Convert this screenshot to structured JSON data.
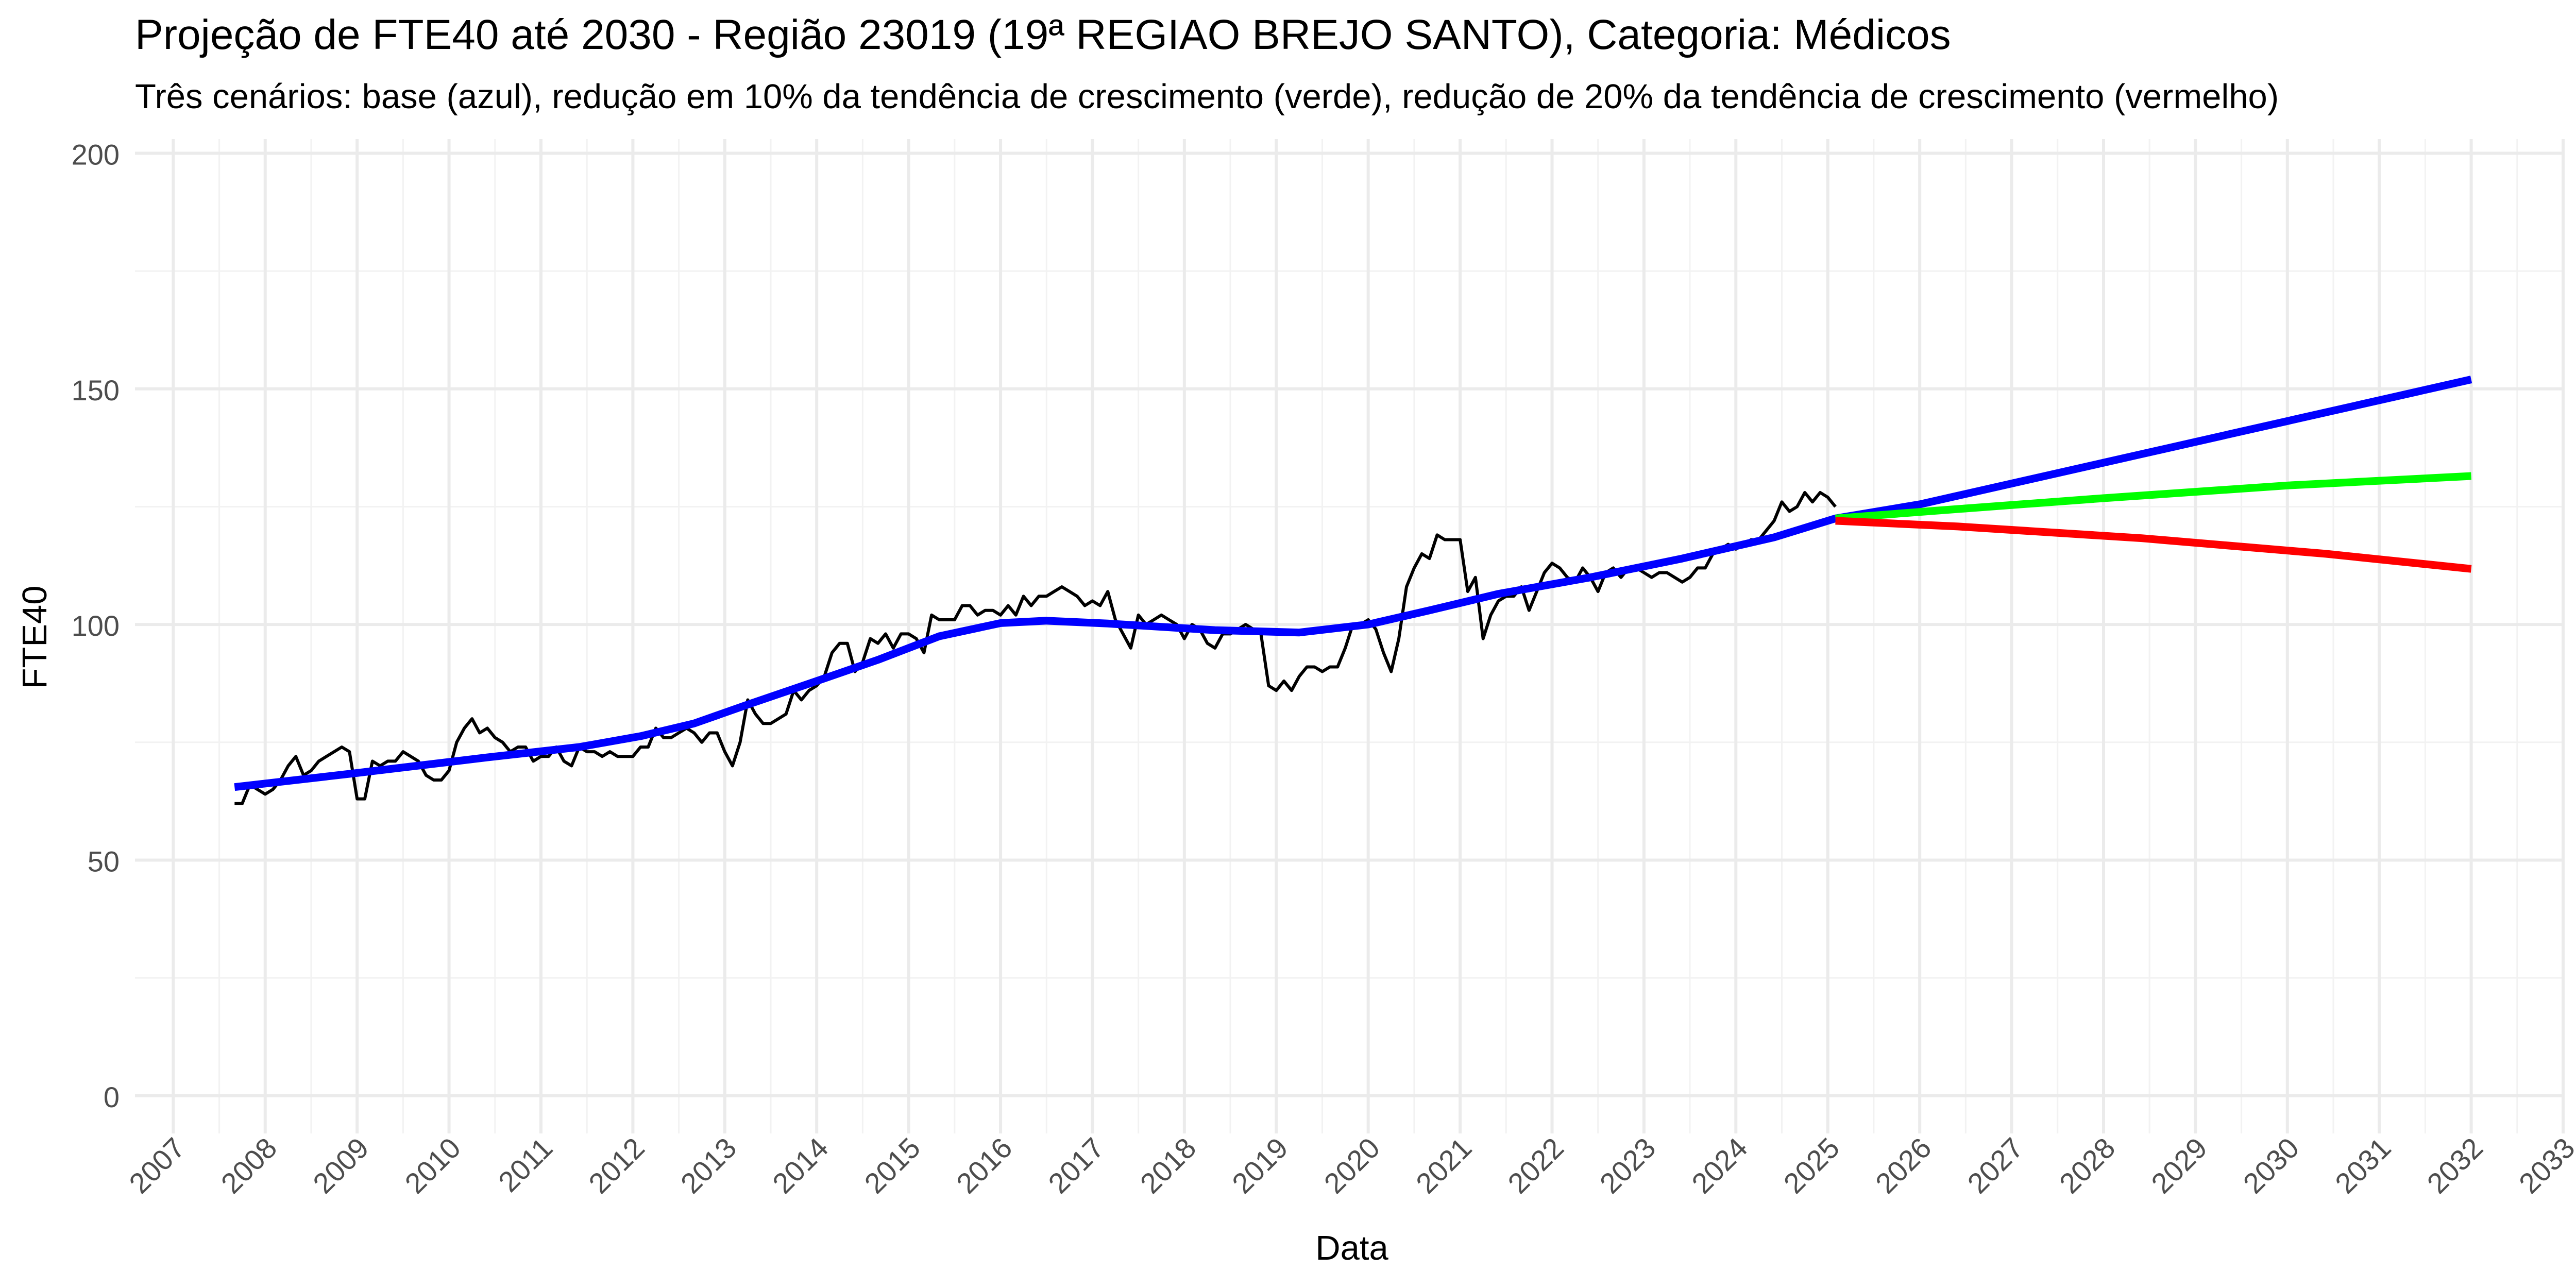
{
  "chart_data": {
    "type": "line",
    "title": "Projeção de FTE40 até 2030 - Região 23019 (19ª REGIAO BREJO SANTO), Categoria: Médicos",
    "subtitle": "Três cenários: base (azul), redução em 10% da tendência de crescimento (verde), redução de 20% da tendência de crescimento (vermelho)",
    "xlabel": "Data",
    "ylabel": "FTE40",
    "x_axis_type": "date",
    "xlim": [
      "2006-08-01",
      "2033-01-01"
    ],
    "ylim": [
      -8,
      203
    ],
    "x_ticks": [
      "2007",
      "2008",
      "2009",
      "2010",
      "2011",
      "2012",
      "2013",
      "2014",
      "2015",
      "2016",
      "2017",
      "2018",
      "2019",
      "2020",
      "2021",
      "2022",
      "2023",
      "2024",
      "2025",
      "2026",
      "2027",
      "2028",
      "2029",
      "2030",
      "2031",
      "2032",
      "2033"
    ],
    "y_ticks": [
      0,
      50,
      100,
      150,
      200
    ],
    "grid": true,
    "legend": "none",
    "series": [
      {
        "color": "#000000",
        "points": [
          [
            "2007-09",
            62
          ],
          [
            "2007-10",
            62
          ],
          [
            "2007-11",
            66
          ],
          [
            "2007-12",
            65
          ],
          [
            "2008-01",
            64
          ],
          [
            "2008-02",
            65
          ],
          [
            "2008-03",
            67
          ],
          [
            "2008-04",
            70
          ],
          [
            "2008-05",
            72
          ],
          [
            "2008-06",
            68
          ],
          [
            "2008-07",
            69
          ],
          [
            "2008-08",
            71
          ],
          [
            "2008-09",
            72
          ],
          [
            "2008-10",
            73
          ],
          [
            "2008-11",
            74
          ],
          [
            "2008-12",
            73
          ],
          [
            "2009-01",
            63
          ],
          [
            "2009-02",
            63
          ],
          [
            "2009-03",
            71
          ],
          [
            "2009-04",
            70
          ],
          [
            "2009-05",
            71
          ],
          [
            "2009-06",
            71
          ],
          [
            "2009-07",
            73
          ],
          [
            "2009-08",
            72
          ],
          [
            "2009-09",
            71
          ],
          [
            "2009-10",
            68
          ],
          [
            "2009-11",
            67
          ],
          [
            "2009-12",
            67
          ],
          [
            "2010-01",
            69
          ],
          [
            "2010-02",
            75
          ],
          [
            "2010-03",
            78
          ],
          [
            "2010-04",
            80
          ],
          [
            "2010-05",
            77
          ],
          [
            "2010-06",
            78
          ],
          [
            "2010-07",
            76
          ],
          [
            "2010-08",
            75
          ],
          [
            "2010-09",
            73
          ],
          [
            "2010-10",
            74
          ],
          [
            "2010-11",
            74
          ],
          [
            "2010-12",
            71
          ],
          [
            "2011-01",
            72
          ],
          [
            "2011-02",
            72
          ],
          [
            "2011-03",
            74
          ],
          [
            "2011-04",
            71
          ],
          [
            "2011-05",
            70
          ],
          [
            "2011-06",
            74
          ],
          [
            "2011-07",
            73
          ],
          [
            "2011-08",
            73
          ],
          [
            "2011-09",
            72
          ],
          [
            "2011-10",
            73
          ],
          [
            "2011-11",
            72
          ],
          [
            "2011-12",
            72
          ],
          [
            "2012-01",
            72
          ],
          [
            "2012-02",
            74
          ],
          [
            "2012-03",
            74
          ],
          [
            "2012-04",
            78
          ],
          [
            "2012-05",
            76
          ],
          [
            "2012-06",
            76
          ],
          [
            "2012-07",
            77
          ],
          [
            "2012-08",
            78
          ],
          [
            "2012-09",
            77
          ],
          [
            "2012-10",
            75
          ],
          [
            "2012-11",
            77
          ],
          [
            "2012-12",
            77
          ],
          [
            "2013-01",
            73
          ],
          [
            "2013-02",
            70
          ],
          [
            "2013-03",
            75
          ],
          [
            "2013-04",
            84
          ],
          [
            "2013-05",
            81
          ],
          [
            "2013-06",
            79
          ],
          [
            "2013-07",
            79
          ],
          [
            "2013-08",
            80
          ],
          [
            "2013-09",
            81
          ],
          [
            "2013-10",
            86
          ],
          [
            "2013-11",
            84
          ],
          [
            "2013-12",
            86
          ],
          [
            "2014-01",
            87
          ],
          [
            "2014-02",
            89
          ],
          [
            "2014-03",
            94
          ],
          [
            "2014-04",
            96
          ],
          [
            "2014-05",
            96
          ],
          [
            "2014-06",
            90
          ],
          [
            "2014-07",
            92
          ],
          [
            "2014-08",
            97
          ],
          [
            "2014-09",
            96
          ],
          [
            "2014-10",
            98
          ],
          [
            "2014-11",
            95
          ],
          [
            "2014-12",
            98
          ],
          [
            "2015-01",
            98
          ],
          [
            "2015-02",
            97
          ],
          [
            "2015-03",
            94
          ],
          [
            "2015-04",
            102
          ],
          [
            "2015-05",
            101
          ],
          [
            "2015-06",
            101
          ],
          [
            "2015-07",
            101
          ],
          [
            "2015-08",
            104
          ],
          [
            "2015-09",
            104
          ],
          [
            "2015-10",
            102
          ],
          [
            "2015-11",
            103
          ],
          [
            "2015-12",
            103
          ],
          [
            "2016-01",
            102
          ],
          [
            "2016-02",
            104
          ],
          [
            "2016-03",
            102
          ],
          [
            "2016-04",
            106
          ],
          [
            "2016-05",
            104
          ],
          [
            "2016-06",
            106
          ],
          [
            "2016-07",
            106
          ],
          [
            "2016-08",
            107
          ],
          [
            "2016-09",
            108
          ],
          [
            "2016-10",
            107
          ],
          [
            "2016-11",
            106
          ],
          [
            "2016-12",
            104
          ],
          [
            "2017-01",
            105
          ],
          [
            "2017-02",
            104
          ],
          [
            "2017-03",
            107
          ],
          [
            "2017-04",
            101
          ],
          [
            "2017-05",
            98
          ],
          [
            "2017-06",
            95
          ],
          [
            "2017-07",
            102
          ],
          [
            "2017-08",
            100
          ],
          [
            "2017-09",
            101
          ],
          [
            "2017-10",
            102
          ],
          [
            "2017-11",
            101
          ],
          [
            "2017-12",
            100
          ],
          [
            "2018-01",
            97
          ],
          [
            "2018-02",
            100
          ],
          [
            "2018-03",
            99
          ],
          [
            "2018-04",
            96
          ],
          [
            "2018-05",
            95
          ],
          [
            "2018-06",
            98
          ],
          [
            "2018-07",
            98
          ],
          [
            "2018-08",
            99
          ],
          [
            "2018-09",
            100
          ],
          [
            "2018-10",
            99
          ],
          [
            "2018-11",
            98
          ],
          [
            "2018-12",
            87
          ],
          [
            "2019-01",
            86
          ],
          [
            "2019-02",
            88
          ],
          [
            "2019-03",
            86
          ],
          [
            "2019-04",
            89
          ],
          [
            "2019-05",
            91
          ],
          [
            "2019-06",
            91
          ],
          [
            "2019-07",
            90
          ],
          [
            "2019-08",
            91
          ],
          [
            "2019-09",
            91
          ],
          [
            "2019-10",
            95
          ],
          [
            "2019-11",
            100
          ],
          [
            "2019-12",
            100
          ],
          [
            "2020-01",
            101
          ],
          [
            "2020-02",
            99
          ],
          [
            "2020-03",
            94
          ],
          [
            "2020-04",
            90
          ],
          [
            "2020-05",
            97
          ],
          [
            "2020-06",
            108
          ],
          [
            "2020-07",
            112
          ],
          [
            "2020-08",
            115
          ],
          [
            "2020-09",
            114
          ],
          [
            "2020-10",
            119
          ],
          [
            "2020-11",
            118
          ],
          [
            "2020-12",
            118
          ],
          [
            "2021-01",
            118
          ],
          [
            "2021-02",
            107
          ],
          [
            "2021-03",
            110
          ],
          [
            "2021-04",
            97
          ],
          [
            "2021-05",
            102
          ],
          [
            "2021-06",
            105
          ],
          [
            "2021-07",
            106
          ],
          [
            "2021-08",
            106
          ],
          [
            "2021-09",
            108
          ],
          [
            "2021-10",
            103
          ],
          [
            "2021-11",
            107
          ],
          [
            "2021-12",
            111
          ],
          [
            "2022-01",
            113
          ],
          [
            "2022-02",
            112
          ],
          [
            "2022-03",
            110
          ],
          [
            "2022-04",
            109
          ],
          [
            "2022-05",
            112
          ],
          [
            "2022-06",
            110
          ],
          [
            "2022-07",
            107
          ],
          [
            "2022-08",
            111
          ],
          [
            "2022-09",
            112
          ],
          [
            "2022-10",
            110
          ],
          [
            "2022-11",
            112
          ],
          [
            "2022-12",
            112
          ],
          [
            "2023-01",
            111
          ],
          [
            "2023-02",
            110
          ],
          [
            "2023-03",
            111
          ],
          [
            "2023-04",
            111
          ],
          [
            "2023-05",
            110
          ],
          [
            "2023-06",
            109
          ],
          [
            "2023-07",
            110
          ],
          [
            "2023-08",
            112
          ],
          [
            "2023-09",
            112
          ],
          [
            "2023-10",
            115
          ],
          [
            "2023-11",
            116
          ],
          [
            "2023-12",
            117
          ],
          [
            "2024-01",
            116
          ],
          [
            "2024-02",
            117
          ],
          [
            "2024-03",
            118
          ],
          [
            "2024-04",
            118
          ],
          [
            "2024-05",
            120
          ],
          [
            "2024-06",
            122
          ],
          [
            "2024-07",
            126
          ],
          [
            "2024-08",
            124
          ],
          [
            "2024-09",
            125
          ],
          [
            "2024-10",
            128
          ],
          [
            "2024-11",
            126
          ],
          [
            "2024-12",
            128
          ],
          [
            "2025-01",
            127
          ],
          [
            "2025-02",
            125
          ]
        ]
      },
      {
        "color": "#0000ff",
        "points": [
          [
            "2007-09",
            65.5
          ],
          [
            "2009-01",
            68.5
          ],
          [
            "2010-06",
            71.8
          ],
          [
            "2011-06",
            74.0
          ],
          [
            "2012-02",
            76.3
          ],
          [
            "2012-09",
            79.0
          ],
          [
            "2013-04",
            83.0
          ],
          [
            "2014-01",
            88.0
          ],
          [
            "2014-09",
            92.5
          ],
          [
            "2015-05",
            97.5
          ],
          [
            "2016-01",
            100.3
          ],
          [
            "2016-07",
            100.8
          ],
          [
            "2017-03",
            100.2
          ],
          [
            "2017-10",
            99.5
          ],
          [
            "2018-05",
            98.8
          ],
          [
            "2019-04",
            98.3
          ],
          [
            "2020-01",
            100.0
          ],
          [
            "2020-09",
            103.0
          ],
          [
            "2021-06",
            106.5
          ],
          [
            "2022-06",
            110.0
          ],
          [
            "2023-06",
            114.0
          ],
          [
            "2024-06",
            118.5
          ],
          [
            "2025-02",
            122.5
          ],
          [
            "2026-01",
            125.5
          ],
          [
            "2032-01",
            152.0
          ]
        ]
      },
      {
        "color": "#00ff00",
        "points": [
          [
            "2025-02",
            122.5
          ],
          [
            "2026-06",
            124.5
          ],
          [
            "2028-01",
            126.8
          ],
          [
            "2030-01",
            129.5
          ],
          [
            "2032-01",
            131.5
          ]
        ]
      },
      {
        "color": "#ff0000",
        "points": [
          [
            "2025-02",
            122.0
          ],
          [
            "2026-06",
            120.8
          ],
          [
            "2028-06",
            118.3
          ],
          [
            "2030-06",
            115.0
          ],
          [
            "2032-01",
            111.8
          ]
        ]
      }
    ]
  }
}
